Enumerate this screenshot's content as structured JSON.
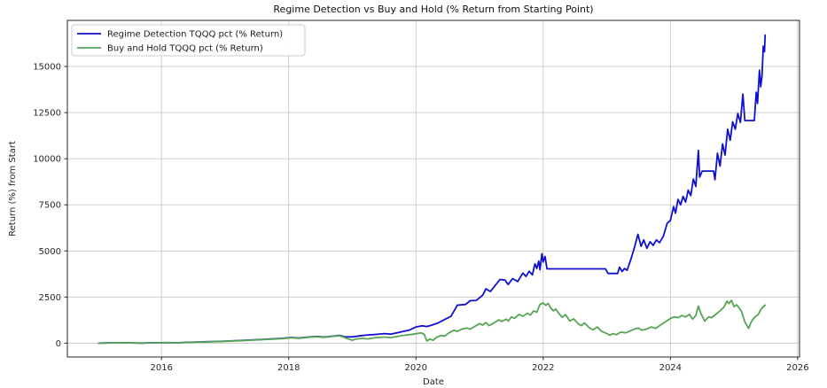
{
  "chart_data": {
    "type": "line",
    "title": "Regime Detection vs Buy and Hold (% Return from Starting Point)",
    "xlabel": "Date",
    "ylabel": "Return (%) from Start",
    "xlim": [
      2014.52,
      2026.03
    ],
    "ylim": [
      -750,
      17500
    ],
    "x_ticks": [
      2016,
      2018,
      2020,
      2022,
      2024,
      2026
    ],
    "y_ticks": [
      0,
      2500,
      5000,
      7500,
      10000,
      12500,
      15000
    ],
    "grid": true,
    "legend_position": "upper left",
    "series": [
      {
        "name": "Regime Detection TQQQ pct (% Return)",
        "color": "#1010d0",
        "points": [
          [
            2015.01,
            0
          ],
          [
            2015.1,
            8
          ],
          [
            2015.2,
            20
          ],
          [
            2015.3,
            12
          ],
          [
            2015.45,
            25
          ],
          [
            2015.55,
            14
          ],
          [
            2015.7,
            5
          ],
          [
            2015.8,
            18
          ],
          [
            2015.95,
            22
          ],
          [
            2016.1,
            28
          ],
          [
            2016.25,
            20
          ],
          [
            2016.4,
            45
          ],
          [
            2016.55,
            60
          ],
          [
            2016.7,
            75
          ],
          [
            2016.85,
            90
          ],
          [
            2017.0,
            110
          ],
          [
            2017.15,
            135
          ],
          [
            2017.3,
            155
          ],
          [
            2017.45,
            180
          ],
          [
            2017.6,
            205
          ],
          [
            2017.75,
            235
          ],
          [
            2017.9,
            265
          ],
          [
            2018.05,
            310
          ],
          [
            2018.15,
            275
          ],
          [
            2018.3,
            330
          ],
          [
            2018.45,
            365
          ],
          [
            2018.55,
            330
          ],
          [
            2018.7,
            385
          ],
          [
            2018.8,
            420
          ],
          [
            2018.88,
            350
          ],
          [
            2019.0,
            340
          ],
          [
            2019.1,
            390
          ],
          [
            2019.2,
            430
          ],
          [
            2019.35,
            470
          ],
          [
            2019.5,
            520
          ],
          [
            2019.6,
            490
          ],
          [
            2019.7,
            560
          ],
          [
            2019.8,
            640
          ],
          [
            2019.9,
            710
          ],
          [
            2020.0,
            880
          ],
          [
            2020.1,
            940
          ],
          [
            2020.17,
            900
          ],
          [
            2020.25,
            980
          ],
          [
            2020.35,
            1100
          ],
          [
            2020.45,
            1280
          ],
          [
            2020.55,
            1450
          ],
          [
            2020.6,
            1750
          ],
          [
            2020.65,
            2060
          ],
          [
            2020.78,
            2100
          ],
          [
            2020.85,
            2300
          ],
          [
            2020.95,
            2320
          ],
          [
            2021.05,
            2600
          ],
          [
            2021.1,
            2950
          ],
          [
            2021.17,
            2800
          ],
          [
            2021.25,
            3150
          ],
          [
            2021.32,
            3450
          ],
          [
            2021.4,
            3420
          ],
          [
            2021.45,
            3180
          ],
          [
            2021.52,
            3500
          ],
          [
            2021.6,
            3340
          ],
          [
            2021.68,
            3800
          ],
          [
            2021.73,
            3620
          ],
          [
            2021.78,
            3900
          ],
          [
            2021.83,
            3700
          ],
          [
            2021.87,
            4300
          ],
          [
            2021.9,
            4050
          ],
          [
            2021.93,
            4450
          ],
          [
            2021.95,
            3980
          ],
          [
            2021.98,
            4850
          ],
          [
            2022.0,
            4400
          ],
          [
            2022.03,
            4700
          ],
          [
            2022.06,
            4030
          ],
          [
            2022.98,
            4030
          ],
          [
            2023.02,
            3780
          ],
          [
            2023.17,
            3780
          ],
          [
            2023.2,
            4120
          ],
          [
            2023.24,
            3890
          ],
          [
            2023.28,
            4050
          ],
          [
            2023.32,
            3950
          ],
          [
            2023.38,
            4550
          ],
          [
            2023.44,
            5250
          ],
          [
            2023.49,
            5900
          ],
          [
            2023.54,
            5250
          ],
          [
            2023.58,
            5600
          ],
          [
            2023.63,
            5150
          ],
          [
            2023.68,
            5500
          ],
          [
            2023.73,
            5300
          ],
          [
            2023.78,
            5600
          ],
          [
            2023.83,
            5450
          ],
          [
            2023.89,
            5800
          ],
          [
            2023.95,
            6500
          ],
          [
            2024.0,
            6650
          ],
          [
            2024.05,
            7400
          ],
          [
            2024.08,
            7050
          ],
          [
            2024.12,
            7800
          ],
          [
            2024.16,
            7500
          ],
          [
            2024.2,
            7950
          ],
          [
            2024.24,
            7650
          ],
          [
            2024.28,
            8300
          ],
          [
            2024.32,
            8000
          ],
          [
            2024.36,
            8900
          ],
          [
            2024.4,
            8500
          ],
          [
            2024.44,
            10450
          ],
          [
            2024.46,
            9000
          ],
          [
            2024.5,
            9330
          ],
          [
            2024.68,
            9330
          ],
          [
            2024.7,
            8860
          ],
          [
            2024.74,
            10300
          ],
          [
            2024.78,
            9600
          ],
          [
            2024.82,
            10800
          ],
          [
            2024.86,
            10200
          ],
          [
            2024.9,
            11600
          ],
          [
            2024.94,
            11000
          ],
          [
            2024.98,
            12000
          ],
          [
            2025.02,
            11600
          ],
          [
            2025.06,
            12450
          ],
          [
            2025.1,
            11970
          ],
          [
            2025.14,
            13510
          ],
          [
            2025.17,
            12070
          ],
          [
            2025.32,
            12070
          ],
          [
            2025.35,
            13600
          ],
          [
            2025.37,
            13000
          ],
          [
            2025.4,
            14800
          ],
          [
            2025.42,
            13900
          ],
          [
            2025.44,
            14500
          ],
          [
            2025.46,
            16100
          ],
          [
            2025.48,
            15800
          ],
          [
            2025.49,
            16700
          ]
        ]
      },
      {
        "name": "Buy and Hold TQQQ pct (% Return)",
        "color": "#55a555",
        "points": [
          [
            2015.01,
            0
          ],
          [
            2015.1,
            6
          ],
          [
            2015.2,
            16
          ],
          [
            2015.3,
            8
          ],
          [
            2015.45,
            20
          ],
          [
            2015.55,
            10
          ],
          [
            2015.7,
            2
          ],
          [
            2015.8,
            14
          ],
          [
            2015.95,
            18
          ],
          [
            2016.1,
            24
          ],
          [
            2016.25,
            16
          ],
          [
            2016.4,
            40
          ],
          [
            2016.55,
            55
          ],
          [
            2016.7,
            68
          ],
          [
            2016.85,
            82
          ],
          [
            2017.0,
            100
          ],
          [
            2017.15,
            125
          ],
          [
            2017.3,
            145
          ],
          [
            2017.45,
            168
          ],
          [
            2017.6,
            192
          ],
          [
            2017.75,
            220
          ],
          [
            2017.9,
            250
          ],
          [
            2018.05,
            295
          ],
          [
            2018.15,
            260
          ],
          [
            2018.3,
            315
          ],
          [
            2018.45,
            350
          ],
          [
            2018.55,
            315
          ],
          [
            2018.7,
            370
          ],
          [
            2018.8,
            405
          ],
          [
            2018.9,
            280
          ],
          [
            2019.0,
            160
          ],
          [
            2019.05,
            220
          ],
          [
            2019.15,
            260
          ],
          [
            2019.25,
            230
          ],
          [
            2019.35,
            290
          ],
          [
            2019.5,
            330
          ],
          [
            2019.6,
            300
          ],
          [
            2019.7,
            360
          ],
          [
            2019.8,
            420
          ],
          [
            2019.9,
            460
          ],
          [
            2020.0,
            510
          ],
          [
            2020.08,
            560
          ],
          [
            2020.13,
            480
          ],
          [
            2020.17,
            120
          ],
          [
            2020.22,
            220
          ],
          [
            2020.27,
            160
          ],
          [
            2020.33,
            330
          ],
          [
            2020.4,
            420
          ],
          [
            2020.45,
            380
          ],
          [
            2020.52,
            560
          ],
          [
            2020.6,
            700
          ],
          [
            2020.65,
            640
          ],
          [
            2020.72,
            760
          ],
          [
            2020.8,
            820
          ],
          [
            2020.85,
            760
          ],
          [
            2020.92,
            900
          ],
          [
            2021.0,
            1060
          ],
          [
            2021.05,
            980
          ],
          [
            2021.1,
            1120
          ],
          [
            2021.15,
            950
          ],
          [
            2021.22,
            1080
          ],
          [
            2021.3,
            1260
          ],
          [
            2021.35,
            1180
          ],
          [
            2021.42,
            1300
          ],
          [
            2021.45,
            1200
          ],
          [
            2021.5,
            1420
          ],
          [
            2021.55,
            1350
          ],
          [
            2021.62,
            1560
          ],
          [
            2021.68,
            1460
          ],
          [
            2021.75,
            1620
          ],
          [
            2021.8,
            1520
          ],
          [
            2021.85,
            1750
          ],
          [
            2021.9,
            1680
          ],
          [
            2021.95,
            2100
          ],
          [
            2022.0,
            2180
          ],
          [
            2022.04,
            2050
          ],
          [
            2022.08,
            2160
          ],
          [
            2022.12,
            1900
          ],
          [
            2022.16,
            1750
          ],
          [
            2022.2,
            1850
          ],
          [
            2022.25,
            1600
          ],
          [
            2022.3,
            1400
          ],
          [
            2022.35,
            1550
          ],
          [
            2022.42,
            1200
          ],
          [
            2022.48,
            1320
          ],
          [
            2022.55,
            1050
          ],
          [
            2022.6,
            950
          ],
          [
            2022.65,
            1100
          ],
          [
            2022.72,
            850
          ],
          [
            2022.78,
            720
          ],
          [
            2022.85,
            880
          ],
          [
            2022.92,
            640
          ],
          [
            2023.0,
            520
          ],
          [
            2023.05,
            430
          ],
          [
            2023.1,
            520
          ],
          [
            2023.15,
            460
          ],
          [
            2023.22,
            600
          ],
          [
            2023.3,
            560
          ],
          [
            2023.38,
            680
          ],
          [
            2023.45,
            780
          ],
          [
            2023.5,
            820
          ],
          [
            2023.55,
            700
          ],
          [
            2023.62,
            760
          ],
          [
            2023.7,
            880
          ],
          [
            2023.77,
            800
          ],
          [
            2023.85,
            1000
          ],
          [
            2023.92,
            1150
          ],
          [
            2024.0,
            1340
          ],
          [
            2024.06,
            1420
          ],
          [
            2024.12,
            1380
          ],
          [
            2024.18,
            1500
          ],
          [
            2024.24,
            1420
          ],
          [
            2024.3,
            1560
          ],
          [
            2024.35,
            1300
          ],
          [
            2024.4,
            1500
          ],
          [
            2024.44,
            2010
          ],
          [
            2024.48,
            1600
          ],
          [
            2024.54,
            1200
          ],
          [
            2024.6,
            1420
          ],
          [
            2024.65,
            1380
          ],
          [
            2024.72,
            1580
          ],
          [
            2024.78,
            1750
          ],
          [
            2024.84,
            1950
          ],
          [
            2024.89,
            2280
          ],
          [
            2024.92,
            2150
          ],
          [
            2024.96,
            2320
          ],
          [
            2025.0,
            1980
          ],
          [
            2025.04,
            2080
          ],
          [
            2025.08,
            1920
          ],
          [
            2025.12,
            1700
          ],
          [
            2025.17,
            1150
          ],
          [
            2025.2,
            980
          ],
          [
            2025.23,
            800
          ],
          [
            2025.27,
            1150
          ],
          [
            2025.3,
            1300
          ],
          [
            2025.34,
            1450
          ],
          [
            2025.38,
            1550
          ],
          [
            2025.42,
            1800
          ],
          [
            2025.45,
            1950
          ],
          [
            2025.49,
            2060
          ]
        ]
      }
    ]
  }
}
